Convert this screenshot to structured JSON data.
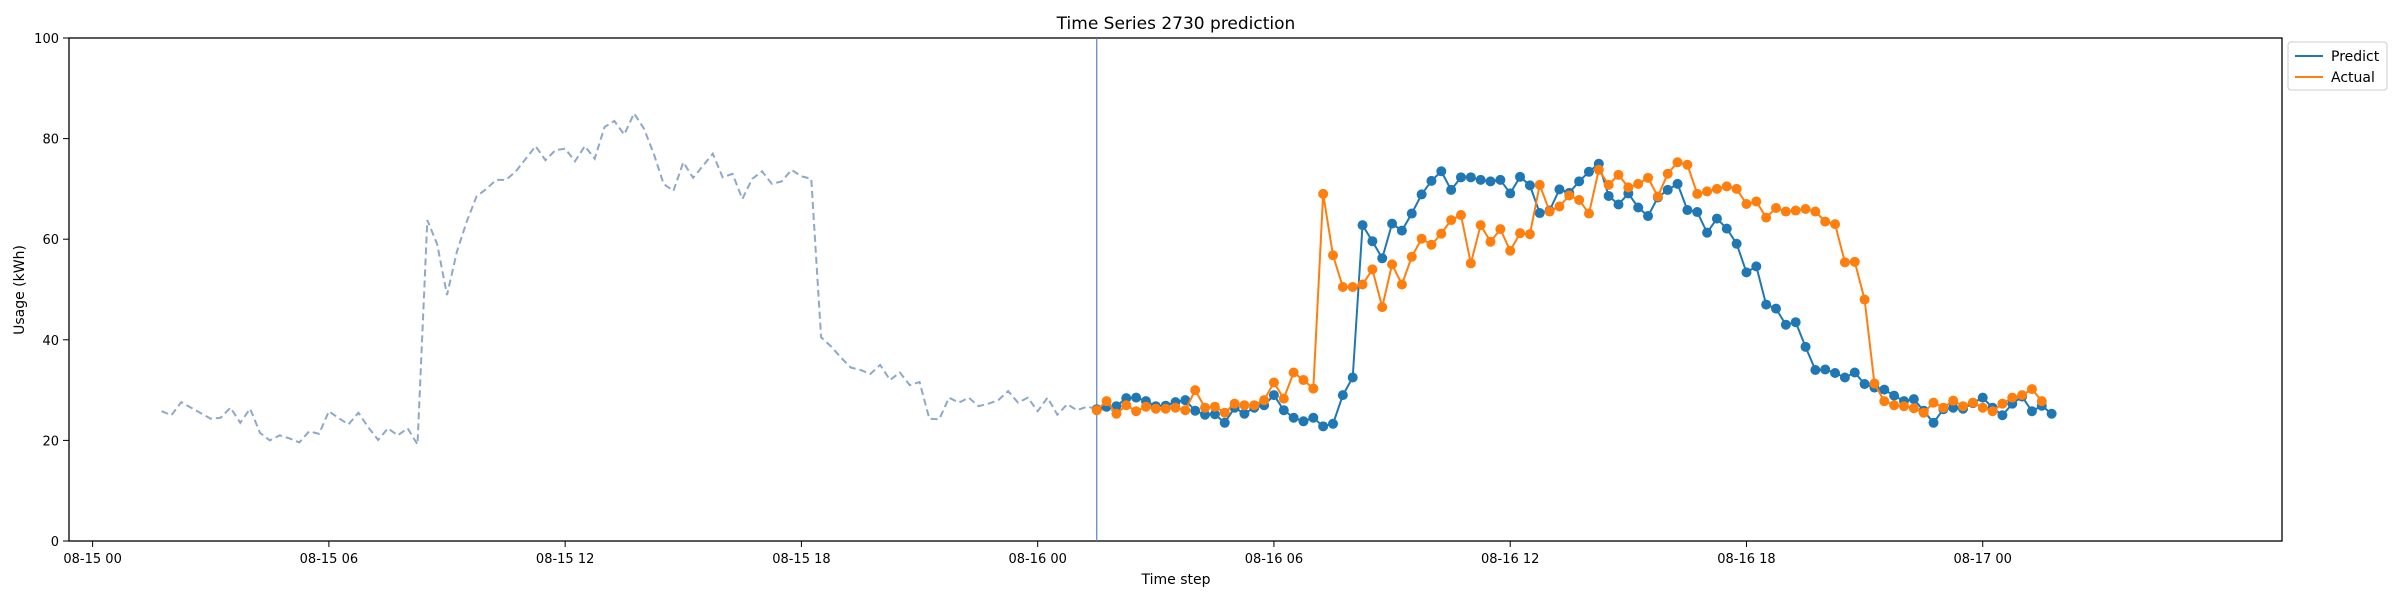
{
  "chart_data": {
    "type": "line",
    "title": "Time Series 2730 prediction",
    "xlabel": "Time step",
    "ylabel": "Usage (kWh)",
    "ylim": [
      0,
      100
    ],
    "xlim": [
      "08-14 23:24",
      "08-17 07:36"
    ],
    "yticks": [
      0,
      20,
      40,
      60,
      80,
      100
    ],
    "xticks": [
      {
        "t": "08-15 00:00",
        "label": "08-15 00"
      },
      {
        "t": "08-15 06:00",
        "label": "08-15 06"
      },
      {
        "t": "08-15 12:00",
        "label": "08-15 12"
      },
      {
        "t": "08-15 18:00",
        "label": "08-15 18"
      },
      {
        "t": "08-16 00:00",
        "label": "08-16 00"
      },
      {
        "t": "08-16 06:00",
        "label": "08-16 06"
      },
      {
        "t": "08-16 12:00",
        "label": "08-16 12"
      },
      {
        "t": "08-16 18:00",
        "label": "08-16 18"
      },
      {
        "t": "08-17 00:00",
        "label": "08-17 00"
      }
    ],
    "forecast_start": "08-16 01:30",
    "legend": {
      "placement": "outside-top-right",
      "entries": [
        "Predict",
        "Actual"
      ]
    },
    "colors": {
      "history": "#8fa8c8",
      "predict": "#1f77b4",
      "actual": "#ff7f0e",
      "divider": "#5b7fc0"
    },
    "history": {
      "start": "08-15 01:45",
      "step_minutes": 15,
      "style": "dashed",
      "values": [
        25.8,
        25.0,
        27.6,
        26.5,
        25.4,
        24.3,
        24.5,
        26.5,
        23.5,
        26.3,
        21.5,
        20.0,
        21.0,
        20.4,
        19.6,
        21.8,
        21.3,
        25.8,
        24.4,
        23.2,
        25.5,
        22.6,
        20.1,
        22.4,
        21.0,
        22.4,
        19.2,
        63.8,
        59.0,
        48.9,
        57.5,
        63.5,
        68.5,
        70.0,
        71.8,
        71.8,
        73.5,
        76.0,
        78.5,
        75.7,
        77.7,
        78.0,
        75.5,
        78.5,
        76.0,
        82.3,
        83.5,
        80.8,
        85.0,
        82.0,
        77.0,
        71.0,
        69.6,
        75.3,
        72.2,
        74.6,
        77.0,
        72.3,
        73.0,
        68.0,
        72.0,
        73.5,
        71.0,
        71.5,
        73.8,
        72.5,
        72.0,
        40.5,
        38.7,
        36.5,
        34.5,
        34.0,
        33.2,
        35.0,
        32.0,
        33.5,
        31.0,
        31.6,
        24.3,
        24.2,
        28.5,
        27.5,
        28.5,
        26.8,
        27.3,
        28.0,
        29.8,
        27.5,
        28.5,
        25.8,
        28.5,
        25.1,
        27.2,
        26.0,
        26.7,
        26.3,
        26.0,
        26.0
      ]
    },
    "series": [
      {
        "name": "Predict",
        "start": "08-16 01:30",
        "step_minutes": 15,
        "values": [
          26.2,
          26.7,
          26.8,
          28.4,
          28.5,
          27.8,
          26.8,
          26.9,
          27.6,
          28.0,
          25.9,
          25.1,
          25.2,
          23.5,
          26.5,
          25.3,
          26.5,
          27.0,
          29.0,
          26.0,
          24.5,
          23.8,
          24.5,
          22.8,
          23.3,
          29.0,
          32.5,
          62.8,
          59.6,
          56.2,
          63.1,
          61.7,
          65.1,
          68.9,
          71.6,
          73.5,
          69.8,
          72.3,
          72.3,
          71.8,
          71.5,
          71.8,
          69.1,
          72.4,
          70.7,
          65.2,
          65.7,
          69.9,
          69.2,
          71.5,
          73.4,
          75.0,
          68.6,
          66.9,
          69.1,
          66.3,
          64.6,
          68.3,
          69.8,
          71.0,
          65.8,
          65.4,
          61.3,
          64.1,
          62.1,
          59.1,
          53.4,
          54.6,
          47.0,
          46.2,
          43.0,
          43.5,
          38.6,
          34.0,
          34.1,
          33.4,
          32.5,
          33.5,
          31.2,
          30.5,
          30.1,
          28.9,
          27.8,
          28.2,
          25.9,
          23.5,
          26.2,
          26.5,
          26.3,
          27.4,
          28.5,
          26.5,
          25.0,
          27.3,
          28.7,
          25.8,
          26.9,
          25.3
        ]
      },
      {
        "name": "Actual",
        "start": "08-16 01:30",
        "step_minutes": 15,
        "values": [
          26.0,
          27.8,
          25.3,
          27.0,
          25.8,
          26.7,
          26.3,
          26.3,
          26.5,
          26.0,
          30.0,
          26.5,
          26.7,
          25.5,
          27.3,
          27.0,
          27.0,
          28.0,
          31.5,
          28.3,
          33.5,
          32.0,
          30.3,
          69.0,
          56.8,
          50.5,
          50.5,
          51.0,
          54.0,
          46.5,
          55.0,
          51.0,
          56.5,
          60.1,
          58.9,
          61.1,
          63.8,
          64.8,
          55.2,
          62.8,
          59.5,
          62.0,
          57.7,
          61.2,
          61.0,
          70.8,
          65.5,
          66.5,
          68.7,
          67.8,
          65.1,
          73.8,
          70.8,
          72.8,
          70.3,
          71.0,
          72.2,
          68.5,
          73.0,
          75.3,
          74.8,
          69.0,
          69.5,
          70.0,
          70.5,
          70.0,
          67.0,
          67.5,
          64.3,
          66.2,
          65.5,
          65.7,
          66.0,
          65.5,
          63.5,
          63.0,
          55.4,
          55.5,
          48.0,
          31.3,
          27.8,
          27.0,
          26.8,
          26.4,
          25.5,
          27.5,
          26.5,
          27.9,
          26.8,
          27.5,
          26.5,
          25.8,
          27.3,
          28.5,
          29.0,
          30.2,
          27.8
        ]
      }
    ]
  }
}
